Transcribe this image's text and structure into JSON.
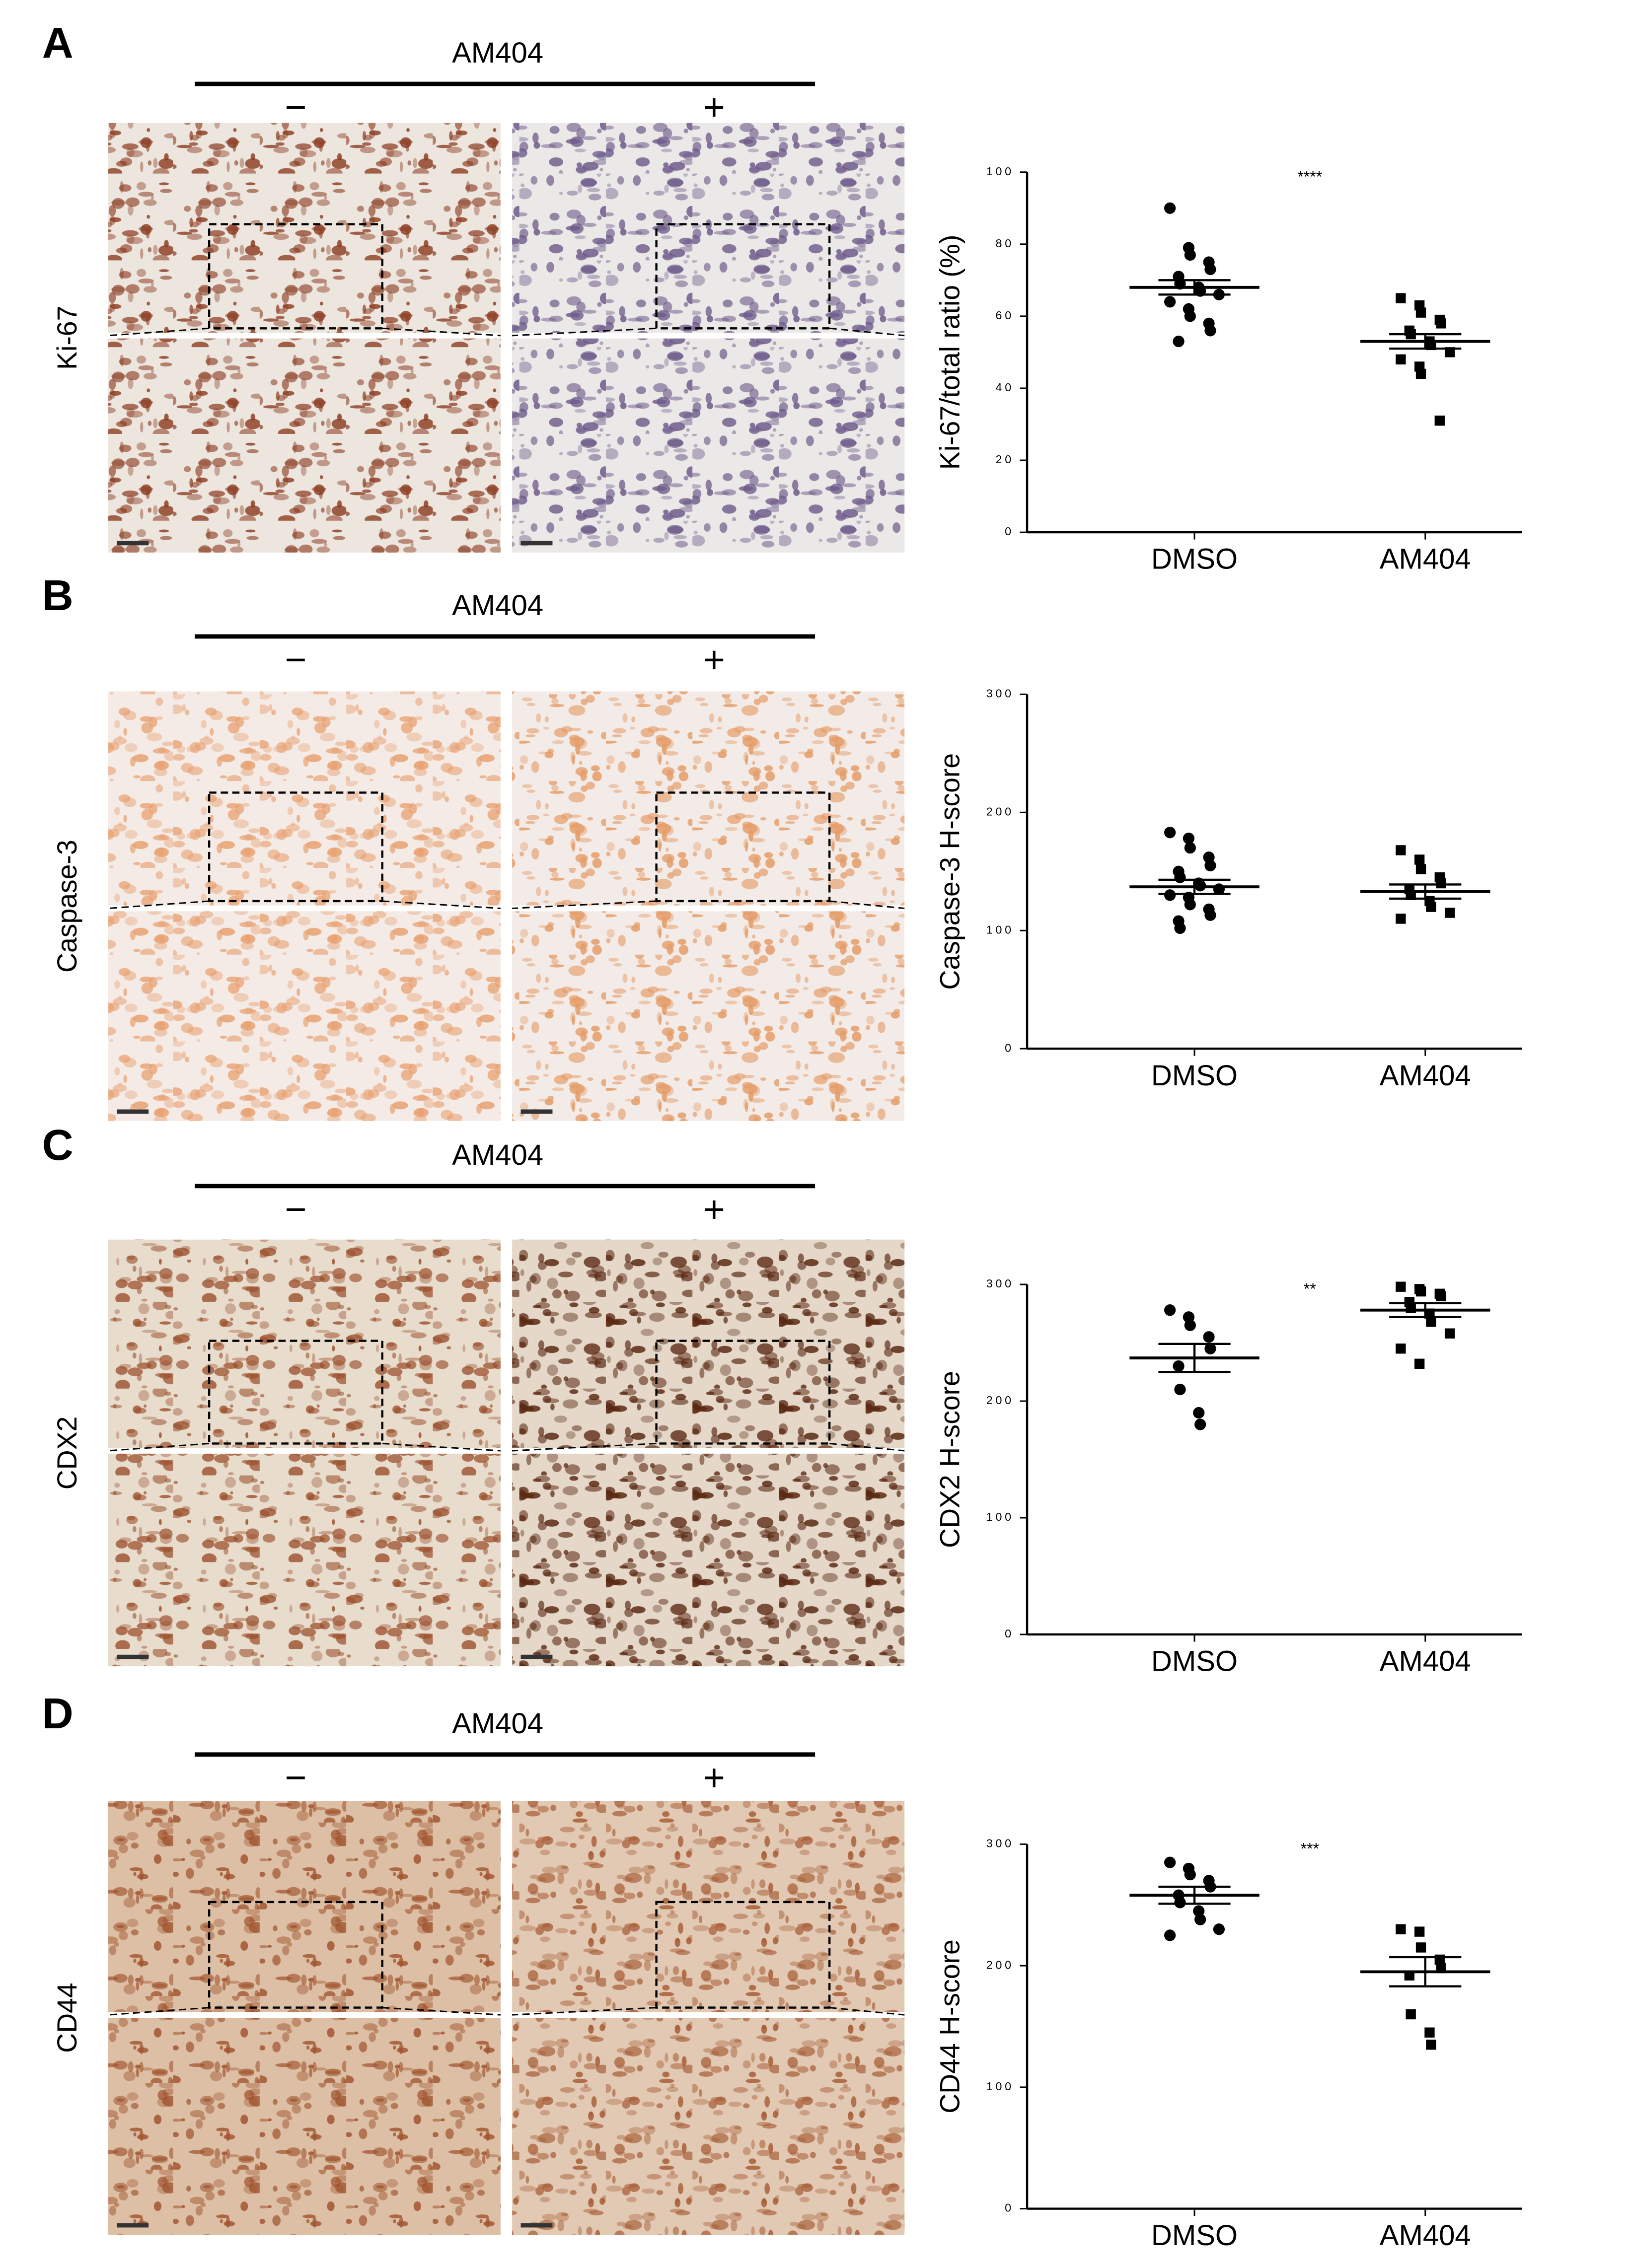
{
  "panels": [
    {
      "letter": "A",
      "treatment": "AM404",
      "minus": "−",
      "plus": "+",
      "stain": "Ki-67"
    },
    {
      "letter": "B",
      "treatment": "AM404",
      "minus": "−",
      "plus": "+",
      "stain": "Caspase-3"
    },
    {
      "letter": "C",
      "treatment": "AM404",
      "minus": "−",
      "plus": "+",
      "stain": "CDX2"
    },
    {
      "letter": "D",
      "treatment": "AM404",
      "minus": "−",
      "plus": "+",
      "stain": "CD44"
    }
  ],
  "chart_data": [
    {
      "type": "scatter",
      "ylabel": "Ki-67/total ratio (%)",
      "categories": [
        "DMSO",
        "AM404"
      ],
      "ylim": [
        0,
        100
      ],
      "yticks": [
        0,
        20,
        40,
        60,
        80,
        100
      ],
      "annotation": "****",
      "color": "#000000",
      "series": [
        {
          "values": [
            90,
            79,
            77,
            75,
            73,
            71,
            69,
            68,
            67,
            66,
            64,
            62,
            60,
            58,
            56,
            53
          ],
          "mean": 68,
          "sem": 2
        },
        {
          "values": [
            65,
            63,
            61,
            59,
            58,
            56,
            55,
            53,
            52,
            50,
            48,
            46,
            44,
            31
          ],
          "mean": 53,
          "sem": 2
        }
      ]
    },
    {
      "type": "scatter",
      "ylabel": "Caspase-3 H-score",
      "categories": [
        "DMSO",
        "AM404"
      ],
      "ylim": [
        0,
        300
      ],
      "yticks": [
        0,
        100,
        200,
        300
      ],
      "color": "#000000",
      "series": [
        {
          "values": [
            183,
            178,
            170,
            162,
            155,
            150,
            145,
            140,
            138,
            135,
            130,
            128,
            122,
            118,
            113,
            108,
            102
          ],
          "mean": 137,
          "sem": 6
        },
        {
          "values": [
            168,
            160,
            152,
            145,
            140,
            135,
            130,
            125,
            120,
            115,
            110
          ],
          "mean": 133,
          "sem": 6
        }
      ]
    },
    {
      "type": "scatter",
      "ylabel": "CDX2 H-score",
      "categories": [
        "DMSO",
        "AM404"
      ],
      "ylim": [
        0,
        300
      ],
      "yticks": [
        0,
        100,
        200,
        300
      ],
      "annotation": "**",
      "color": "#000000",
      "series": [
        {
          "values": [
            278,
            272,
            265,
            255,
            245,
            230,
            210,
            190,
            180
          ],
          "mean": 237,
          "sem": 12
        },
        {
          "values": [
            298,
            296,
            294,
            292,
            290,
            285,
            280,
            275,
            268,
            258,
            245,
            232
          ],
          "mean": 278,
          "sem": 6
        }
      ]
    },
    {
      "type": "scatter",
      "ylabel": "CD44 H-score",
      "categories": [
        "DMSO",
        "AM404"
      ],
      "ylim": [
        0,
        300
      ],
      "yticks": [
        0,
        100,
        200,
        300
      ],
      "annotation": "***",
      "color": "#000000",
      "series": [
        {
          "values": [
            285,
            280,
            275,
            270,
            265,
            258,
            252,
            245,
            238,
            230,
            225
          ],
          "mean": 258,
          "sem": 7
        },
        {
          "values": [
            230,
            228,
            215,
            205,
            198,
            192,
            160,
            145,
            135
          ],
          "mean": 195,
          "sem": 12
        }
      ]
    }
  ]
}
